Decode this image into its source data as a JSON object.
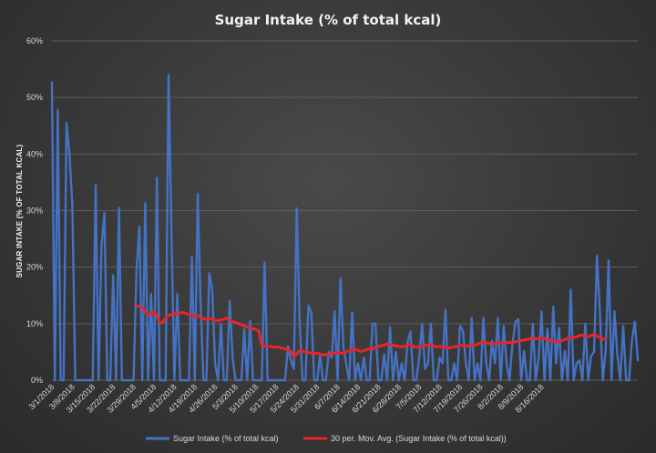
{
  "chart_data": {
    "type": "line",
    "title": "Sugar Intake (% of total kcal)",
    "xlabel": "",
    "ylabel": "SUGAR INTAKE (% OF TOTAL KCAL)",
    "ylim": [
      0,
      60
    ],
    "y_ticks": [
      "0%",
      "10%",
      "20%",
      "30%",
      "40%",
      "50%",
      "60%"
    ],
    "x_start": "3/1/2018",
    "x_tick_labels": [
      "3/1/2018",
      "3/8/2018",
      "3/15/2018",
      "3/22/2018",
      "3/29/2018",
      "4/5/2018",
      "4/12/2018",
      "4/19/2018",
      "4/26/2018",
      "5/3/2018",
      "5/10/2018",
      "5/17/2018",
      "5/24/2018",
      "5/31/2018",
      "6/7/2018",
      "6/14/2018",
      "6/21/2018",
      "6/28/2018",
      "7/5/2018",
      "7/12/2018",
      "7/19/2018",
      "7/26/2018",
      "8/2/2018",
      "8/9/2018",
      "8/16/2018"
    ],
    "grid": true,
    "legend_position": "bottom",
    "series": [
      {
        "name": "Sugar Intake (% of total kcal)",
        "color": "#4472C4",
        "values": [
          52.7,
          0,
          47.8,
          0,
          0,
          45.5,
          40,
          31,
          0,
          0,
          0,
          0,
          0,
          0,
          0,
          34.5,
          0,
          23.7,
          29.6,
          0,
          0,
          18.6,
          0,
          30.5,
          0,
          0,
          0,
          0,
          0,
          19.4,
          27.2,
          0,
          31.3,
          0,
          15.3,
          0,
          35.8,
          0,
          0,
          0,
          54,
          26,
          0,
          15.3,
          0,
          0,
          0,
          0,
          21.9,
          0,
          32.9,
          14,
          0,
          0,
          18.9,
          16,
          3,
          0,
          10,
          0,
          0,
          14,
          4,
          0,
          0,
          0,
          9,
          0,
          10.5,
          0,
          0,
          0,
          0,
          20.8,
          0,
          0,
          0,
          0,
          0,
          0,
          0,
          6,
          3.5,
          2,
          30.4,
          10,
          0,
          0,
          13.2,
          12,
          0,
          0,
          4.3,
          0,
          0,
          5,
          4,
          12.2,
          0,
          18,
          6,
          2.8,
          0,
          12,
          0,
          3,
          0,
          4,
          0,
          0,
          10,
          10,
          0,
          0,
          4.6,
          0,
          9.4,
          0,
          5,
          0,
          3,
          0,
          6.7,
          8.6,
          0,
          0,
          4,
          10,
          2,
          3,
          10,
          0,
          0,
          4,
          3,
          12.5,
          0,
          0,
          3,
          0,
          9.6,
          8.7,
          3,
          0,
          11,
          0,
          3,
          0,
          11,
          3,
          0,
          7,
          3,
          11,
          0,
          9.6,
          3,
          0,
          6.3,
          10.3,
          10.8,
          0,
          5.2,
          0,
          0,
          10,
          0,
          4,
          12.2,
          0,
          9.1,
          0,
          13,
          3,
          9.3,
          0,
          5.2,
          0,
          16,
          0,
          3,
          3.5,
          0,
          10,
          0,
          4.3,
          5,
          22,
          12,
          0,
          5.3,
          21.2,
          0,
          12.2,
          4.5,
          0,
          9.6,
          0,
          0,
          7.1,
          10.3,
          3.5
        ]
      },
      {
        "name": "30 per. Mov. Avg. (Sugar Intake (% of total kcal))",
        "color": "#E8252A",
        "values": [
          null,
          null,
          null,
          null,
          null,
          null,
          null,
          null,
          null,
          null,
          null,
          null,
          null,
          null,
          null,
          null,
          null,
          null,
          null,
          null,
          null,
          null,
          null,
          null,
          null,
          null,
          null,
          null,
          null,
          13.2,
          13,
          12.8,
          12.2,
          11.5,
          11.8,
          12.1,
          11.4,
          10.3,
          10.2,
          11,
          11.5,
          11.6,
          11.8,
          11.7,
          11.9,
          12,
          11.8,
          11.6,
          11.5,
          11.3,
          11.4,
          11.1,
          10.9,
          10.7,
          10.9,
          10.8,
          10.6,
          10.5,
          10.7,
          10.8,
          11,
          10.6,
          10.4,
          10.2,
          10,
          9.8,
          9.6,
          9.4,
          9.3,
          9.1,
          9,
          8.7,
          6.2,
          6,
          5.9,
          6,
          5.8,
          5.9,
          5.8,
          5.7,
          5.5,
          5.3,
          5.1,
          4.2,
          4.6,
          5.3,
          5.1,
          5,
          4.9,
          4.8,
          4.7,
          4.8,
          4.6,
          4.5,
          4.5,
          4.6,
          4.7,
          4.8,
          4.9,
          4.8,
          4.8,
          5,
          5.2,
          5.3,
          5.5,
          5.3,
          5.1,
          5.2,
          5.4,
          5.6,
          5.5,
          5.8,
          6,
          6.1,
          6.2,
          6.4,
          6.3,
          6.2,
          6.1,
          6,
          5.9,
          6,
          6.2,
          6.3,
          6,
          5.8,
          6,
          5.9,
          6.1,
          6.2,
          6.4,
          6.1,
          5.9,
          6,
          5.8,
          5.9,
          5.7,
          5.8,
          5.9,
          6,
          6.2,
          6.1,
          6,
          6.1,
          6.3,
          6.2,
          6.4,
          6.6,
          6.8,
          6.6,
          6.5,
          6.4,
          6.5,
          6.7,
          6.6,
          6.5,
          6.6,
          6.7,
          6.6,
          6.8,
          6.9,
          7,
          7.1,
          7.2,
          7.3,
          7.4,
          7.3,
          7.4,
          7.5,
          7.4,
          7.2,
          7,
          6.9,
          6.7,
          6.8,
          7,
          7.2,
          7.4,
          7.6,
          7.5,
          7.7,
          7.9,
          8,
          7.8,
          7.7,
          7.9,
          8.1,
          7.8,
          7.6,
          7.3,
          7.2
        ]
      }
    ]
  }
}
